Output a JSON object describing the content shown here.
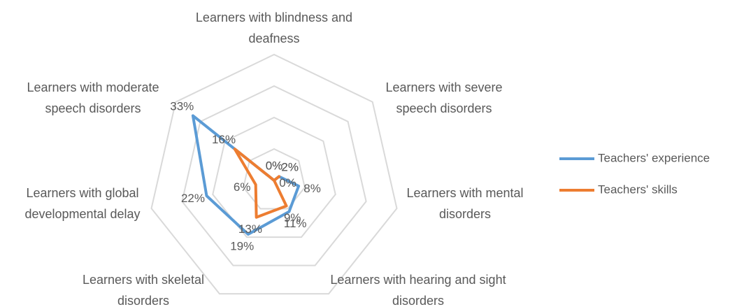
{
  "chart_data": {
    "type": "radar",
    "categories": [
      "Learners with blindness and deafness",
      "Learners with severe speech disorders",
      "Learners with mental disorders",
      "Learners with hearing and sight disorders",
      "Learners with skeletal disorders",
      "Learners with global developmental delay",
      "Learners with moderate speech disorders"
    ],
    "series": [
      {
        "name": "Teachers' experience",
        "color": "#5b9bd5",
        "values": [
          0,
          2,
          8,
          11,
          19,
          22,
          33
        ],
        "value_labels": [
          "0%",
          "2%",
          "8%",
          "11%",
          "19%",
          "22%",
          "33%"
        ]
      },
      {
        "name": "Teachers' skills",
        "color": "#ed7d31",
        "values": [
          0,
          2,
          0,
          9,
          13,
          6,
          16
        ],
        "value_labels": [
          "0%",
          "2%",
          "0%",
          "9%",
          "13%",
          "6%",
          "16%"
        ]
      }
    ],
    "ylim": [
      0,
      40
    ],
    "yticks": [
      0,
      10,
      20,
      30,
      40
    ],
    "grid": true,
    "legend": "right"
  }
}
